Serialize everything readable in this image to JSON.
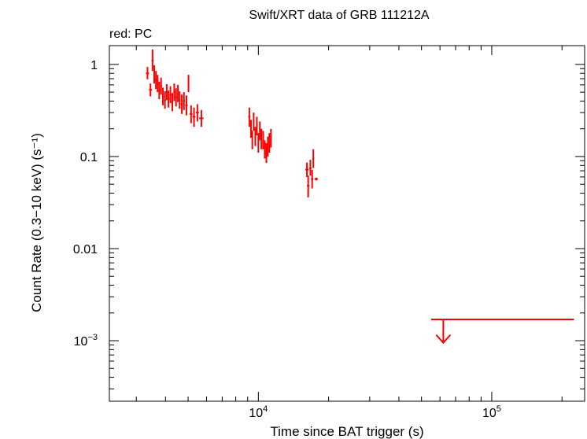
{
  "chart_data": {
    "type": "scatter",
    "title": "Swift/XRT data of GRB 111212A",
    "subtitle": "red: PC",
    "xlabel": "Time since BAT trigger (s)",
    "ylabel": "Count Rate (0.3−10 keV) (s⁻¹)",
    "x_scale": "log",
    "y_scale": "log",
    "xlim": [
      2300,
      250000
    ],
    "ylim": [
      0.00022,
      1.6
    ],
    "x_tick_labels": [
      {
        "value": 10000,
        "mant": "10",
        "exp": "4"
      },
      {
        "value": 100000,
        "mant": "10",
        "exp": "5"
      }
    ],
    "y_tick_labels": [
      {
        "value": 1,
        "text": "1"
      },
      {
        "value": 0.1,
        "text": "0.1"
      },
      {
        "value": 0.01,
        "text": "0.01"
      },
      {
        "value": 0.001,
        "mant": "10",
        "exp": "−3"
      }
    ],
    "color": "#ff0000",
    "series": [
      {
        "mode": "PC",
        "points": [
          {
            "t": 3350,
            "r": 0.8,
            "tlo": 3300,
            "thi": 3400,
            "rlo": 0.69,
            "rhi": 0.94
          },
          {
            "t": 3450,
            "r": 0.53,
            "tlo": 3400,
            "thi": 3500,
            "rlo": 0.45,
            "rhi": 0.62
          },
          {
            "t": 3520,
            "r": 1.1,
            "tlo": 3490,
            "thi": 3560,
            "rlo": 0.85,
            "rhi": 1.45
          },
          {
            "t": 3580,
            "r": 0.78,
            "tlo": 3550,
            "thi": 3610,
            "rlo": 0.62,
            "rhi": 0.98
          },
          {
            "t": 3640,
            "r": 0.68,
            "tlo": 3610,
            "thi": 3680,
            "rlo": 0.54,
            "rhi": 0.85
          },
          {
            "t": 3700,
            "r": 0.62,
            "tlo": 3670,
            "thi": 3740,
            "rlo": 0.5,
            "rhi": 0.77
          },
          {
            "t": 3760,
            "r": 0.52,
            "tlo": 3730,
            "thi": 3800,
            "rlo": 0.42,
            "rhi": 0.65
          },
          {
            "t": 3830,
            "r": 0.58,
            "tlo": 3800,
            "thi": 3870,
            "rlo": 0.47,
            "rhi": 0.72
          },
          {
            "t": 3900,
            "r": 0.45,
            "tlo": 3870,
            "thi": 3940,
            "rlo": 0.36,
            "rhi": 0.56
          },
          {
            "t": 3980,
            "r": 0.41,
            "tlo": 3940,
            "thi": 4020,
            "rlo": 0.33,
            "rhi": 0.51
          },
          {
            "t": 4050,
            "r": 0.5,
            "tlo": 4010,
            "thi": 4090,
            "rlo": 0.41,
            "rhi": 0.61
          },
          {
            "t": 4120,
            "r": 0.42,
            "tlo": 4090,
            "thi": 4160,
            "rlo": 0.34,
            "rhi": 0.52
          },
          {
            "t": 4200,
            "r": 0.47,
            "tlo": 4160,
            "thi": 4240,
            "rlo": 0.38,
            "rhi": 0.58
          },
          {
            "t": 4280,
            "r": 0.39,
            "tlo": 4240,
            "thi": 4320,
            "rlo": 0.31,
            "rhi": 0.49
          },
          {
            "t": 4360,
            "r": 0.5,
            "tlo": 4320,
            "thi": 4400,
            "rlo": 0.4,
            "rhi": 0.62
          },
          {
            "t": 4440,
            "r": 0.44,
            "tlo": 4400,
            "thi": 4480,
            "rlo": 0.35,
            "rhi": 0.55
          },
          {
            "t": 4520,
            "r": 0.48,
            "tlo": 4480,
            "thi": 4560,
            "rlo": 0.39,
            "rhi": 0.6
          },
          {
            "t": 4600,
            "r": 0.41,
            "tlo": 4560,
            "thi": 4640,
            "rlo": 0.33,
            "rhi": 0.51
          },
          {
            "t": 4700,
            "r": 0.37,
            "tlo": 4650,
            "thi": 4750,
            "rlo": 0.29,
            "rhi": 0.47
          },
          {
            "t": 4800,
            "r": 0.4,
            "tlo": 4750,
            "thi": 4850,
            "rlo": 0.32,
            "rhi": 0.5
          },
          {
            "t": 4920,
            "r": 0.36,
            "tlo": 4860,
            "thi": 4980,
            "rlo": 0.28,
            "rhi": 0.46
          },
          {
            "t": 5020,
            "r": 0.62,
            "tlo": 4980,
            "thi": 5060,
            "rlo": 0.5,
            "rhi": 0.77
          },
          {
            "t": 5150,
            "r": 0.29,
            "tlo": 5080,
            "thi": 5220,
            "rlo": 0.23,
            "rhi": 0.36
          },
          {
            "t": 5300,
            "r": 0.27,
            "tlo": 5220,
            "thi": 5380,
            "rlo": 0.21,
            "rhi": 0.34
          },
          {
            "t": 5480,
            "r": 0.3,
            "tlo": 5400,
            "thi": 5560,
            "rlo": 0.24,
            "rhi": 0.37
          },
          {
            "t": 5700,
            "r": 0.26,
            "tlo": 5580,
            "thi": 5820,
            "rlo": 0.21,
            "rhi": 0.32
          },
          {
            "t": 9150,
            "r": 0.27,
            "tlo": 9050,
            "thi": 9250,
            "rlo": 0.21,
            "rhi": 0.34
          },
          {
            "t": 9300,
            "r": 0.2,
            "tlo": 9230,
            "thi": 9370,
            "rlo": 0.16,
            "rhi": 0.25
          },
          {
            "t": 9420,
            "r": 0.15,
            "tlo": 9360,
            "thi": 9480,
            "rlo": 0.12,
            "rhi": 0.19
          },
          {
            "t": 9550,
            "r": 0.24,
            "tlo": 9480,
            "thi": 9620,
            "rlo": 0.19,
            "rhi": 0.3
          },
          {
            "t": 9700,
            "r": 0.17,
            "tlo": 9630,
            "thi": 9770,
            "rlo": 0.13,
            "rhi": 0.21
          },
          {
            "t": 9850,
            "r": 0.22,
            "tlo": 9780,
            "thi": 9920,
            "rlo": 0.17,
            "rhi": 0.27
          },
          {
            "t": 10000,
            "r": 0.14,
            "tlo": 9930,
            "thi": 10070,
            "rlo": 0.11,
            "rhi": 0.18
          },
          {
            "t": 10150,
            "r": 0.19,
            "tlo": 10080,
            "thi": 10220,
            "rlo": 0.15,
            "rhi": 0.24
          },
          {
            "t": 10300,
            "r": 0.16,
            "tlo": 10230,
            "thi": 10370,
            "rlo": 0.12,
            "rhi": 0.2
          },
          {
            "t": 10480,
            "r": 0.15,
            "tlo": 10400,
            "thi": 10560,
            "rlo": 0.12,
            "rhi": 0.19
          },
          {
            "t": 10650,
            "r": 0.12,
            "tlo": 10570,
            "thi": 10730,
            "rlo": 0.095,
            "rhi": 0.15
          },
          {
            "t": 10820,
            "r": 0.11,
            "tlo": 10740,
            "thi": 10900,
            "rlo": 0.085,
            "rhi": 0.14
          },
          {
            "t": 10980,
            "r": 0.13,
            "tlo": 10900,
            "thi": 11060,
            "rlo": 0.1,
            "rhi": 0.165
          },
          {
            "t": 11150,
            "r": 0.14,
            "tlo": 11070,
            "thi": 11230,
            "rlo": 0.11,
            "rhi": 0.18
          },
          {
            "t": 11320,
            "r": 0.16,
            "tlo": 11240,
            "thi": 11400,
            "rlo": 0.125,
            "rhi": 0.2
          },
          {
            "t": 16150,
            "r": 0.072,
            "tlo": 15900,
            "thi": 16400,
            "rlo": 0.06,
            "rhi": 0.086
          },
          {
            "t": 16350,
            "r": 0.048,
            "tlo": 16150,
            "thi": 16550,
            "rlo": 0.036,
            "rhi": 0.062
          },
          {
            "t": 16700,
            "r": 0.075,
            "tlo": 16500,
            "thi": 16900,
            "rlo": 0.062,
            "rhi": 0.092
          },
          {
            "t": 17000,
            "r": 0.057,
            "tlo": 16800,
            "thi": 17200,
            "rlo": 0.045,
            "rhi": 0.072
          },
          {
            "t": 17200,
            "r": 0.095,
            "tlo": 17050,
            "thi": 17350,
            "rlo": 0.075,
            "rhi": 0.12
          },
          {
            "t": 17700,
            "r": 0.057,
            "tlo": 17400,
            "thi": 18000,
            "rlo": 0.055,
            "rhi": 0.059
          }
        ]
      }
    ],
    "upper_limit": {
      "t": 62000,
      "tlo": 55000,
      "thi": 225000,
      "r": 0.0017,
      "arrow_to": 0.00095
    }
  }
}
